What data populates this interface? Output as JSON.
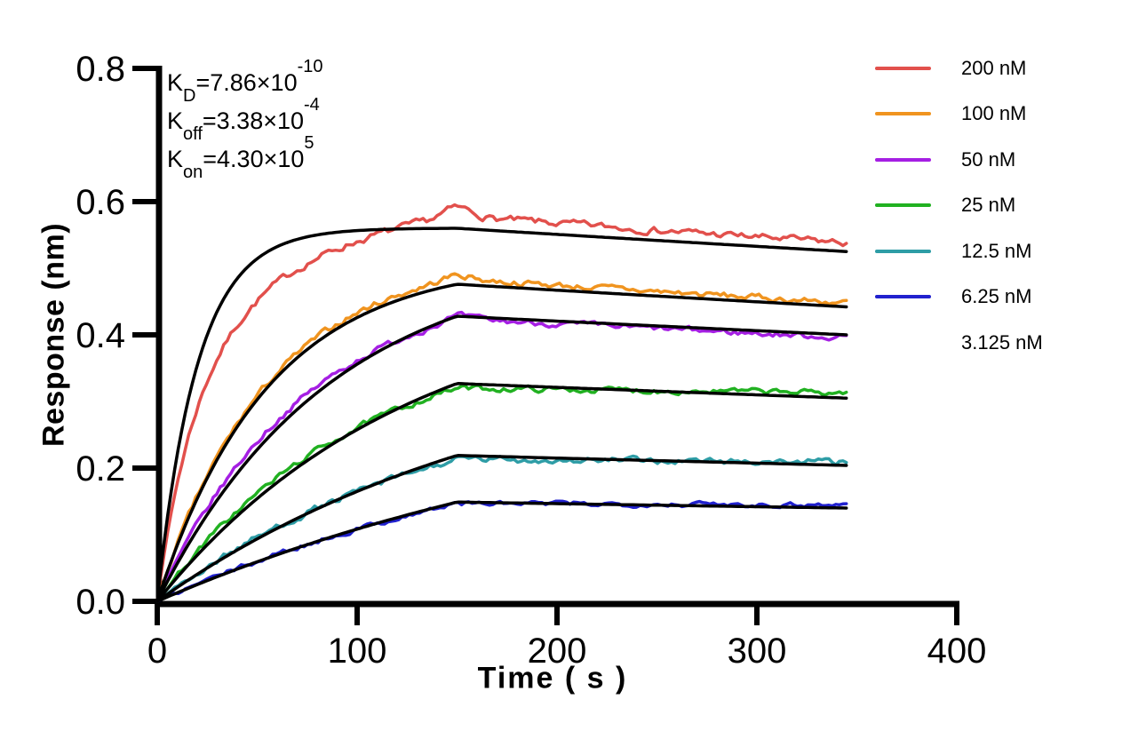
{
  "canvas": {
    "background": "#FFFFFF",
    "axis_color": "#000000"
  },
  "chart_data": {
    "type": "line",
    "title": "",
    "xlabel": "Time ( s )",
    "ylabel": "Response (nm)",
    "xlim": [
      0,
      400
    ],
    "ylim": [
      0,
      0.8
    ],
    "xticks": [
      "0",
      "100",
      "200",
      "300",
      "400"
    ],
    "yticks": [
      "0.0",
      "0.2",
      "0.4",
      "0.6",
      "0.8"
    ],
    "grid": false,
    "legend_position": "right",
    "association_end_s": 150,
    "trace_end_s": 345,
    "fit_color": "#000000",
    "kinetics": [
      {
        "symbol": "K",
        "subscript": "D",
        "value": "=7.86×10",
        "exponent": "-10"
      },
      {
        "symbol": "K",
        "subscript": "off",
        "value": "=3.38×10",
        "exponent": "-4"
      },
      {
        "symbol": "K",
        "subscript": "on",
        "value": "=4.30×10",
        "exponent": "5"
      }
    ],
    "series": [
      {
        "name": "200 nM",
        "color": "#E2504C",
        "data": {
          "peak": 0.578,
          "end": 0.538,
          "k_assoc": 0.055,
          "k_assoc2": 0.013,
          "frac": 0.55,
          "peak_bump": 0.013,
          "noise": 0.0045
        },
        "fit": {
          "peak": 0.56,
          "end": 0.525,
          "k_assoc": 0.05
        }
      },
      {
        "name": "100 nM",
        "color": "#F0941F",
        "data": {
          "peak": 0.484,
          "end": 0.448,
          "k_assoc": 0.018,
          "peak_bump": 0.006,
          "noise": 0.004
        },
        "fit": {
          "peak": 0.476,
          "end": 0.442,
          "k_assoc": 0.018
        }
      },
      {
        "name": "50 nM",
        "color": "#A51FE3",
        "data": {
          "peak": 0.424,
          "end": 0.396,
          "k_assoc": 0.0135,
          "peak_bump": 0.004,
          "noise": 0.0038
        },
        "fit": {
          "peak": 0.428,
          "end": 0.4,
          "k_assoc": 0.0115
        }
      },
      {
        "name": "25 nM",
        "color": "#21B121",
        "data": {
          "peak": 0.32,
          "end": 0.313,
          "k_assoc": 0.01,
          "peak_bump": 0,
          "noise": 0.0036
        },
        "fit": {
          "peak": 0.327,
          "end": 0.305,
          "k_assoc": 0.008
        }
      },
      {
        "name": "12.5 nM",
        "color": "#2E9DA6",
        "data": {
          "peak": 0.213,
          "end": 0.209,
          "k_assoc": 0.0068,
          "peak_bump": 0,
          "noise": 0.004
        },
        "fit": {
          "peak": 0.219,
          "end": 0.204,
          "k_assoc": 0.0055
        }
      },
      {
        "name": "6.25 nM",
        "color": "#2121CE",
        "data": {
          "peak": 0.147,
          "end": 0.145,
          "k_assoc": 0.0044,
          "peak_bump": 0,
          "noise": 0.003
        },
        "fit": {
          "peak": 0.149,
          "end": 0.14,
          "k_assoc": 0.0038
        }
      },
      {
        "name": "3.125 nM",
        "color": null
      }
    ]
  }
}
